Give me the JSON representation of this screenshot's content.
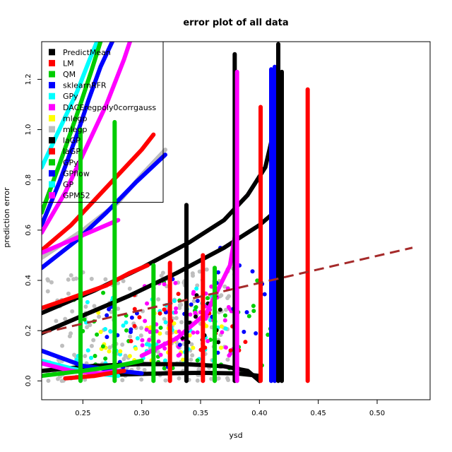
{
  "chart_data": {
    "type": "scatter",
    "title": "error plot of all data",
    "xlabel": "ysd",
    "ylabel": "prediction error",
    "xlim": [
      0.215,
      0.545
    ],
    "ylim": [
      -0.075,
      1.35
    ],
    "x_ticks": [
      0.25,
      0.3,
      0.35,
      0.4,
      0.45,
      0.5
    ],
    "x_tick_labels": [
      "0.25",
      "0.30",
      "0.35",
      "0.40",
      "0.45",
      "0.50"
    ],
    "y_ticks": [
      0.0,
      0.2,
      0.4,
      0.6,
      0.8,
      1.0,
      1.2
    ],
    "y_tick_labels": [
      "0.0",
      "0.2",
      "0.4",
      "0.6",
      "0.8",
      "1.0",
      "1.2"
    ],
    "legend_position": "top-left",
    "legend": [
      {
        "label": "PredictMean",
        "color": "#000000"
      },
      {
        "label": "LM",
        "color": "#ff0000"
      },
      {
        "label": "QM",
        "color": "#00cd00"
      },
      {
        "label": "sklearnRFR",
        "color": "#0000ff"
      },
      {
        "label": "GPy",
        "color": "#00ffff"
      },
      {
        "label": "DACEregpoly0corrgauss",
        "color": "#ff00ff"
      },
      {
        "label": "mlegp",
        "color": "#ffff00"
      },
      {
        "label": "mlegp",
        "color": "#bebebe"
      },
      {
        "label": "laGP",
        "color": "#000000"
      },
      {
        "label": "laGP",
        "color": "#ff0000"
      },
      {
        "label": "GPy",
        "color": "#00cd00"
      },
      {
        "label": "GPflow",
        "color": "#0000ff"
      },
      {
        "label": "GP",
        "color": "#00ffff"
      },
      {
        "label": "GPM52",
        "color": "#ff00ff"
      }
    ],
    "reference_line": {
      "x": [
        0.215,
        0.53
      ],
      "y": [
        0.19,
        0.53
      ],
      "color": "#a52a2a",
      "style": "dashed"
    },
    "vertical_lines": [
      {
        "x": 0.248,
        "y": [
          0.0,
          1.0
        ],
        "color": "#00cd00"
      },
      {
        "x": 0.277,
        "y": [
          0.0,
          1.03
        ],
        "color": "#00cd00"
      },
      {
        "x": 0.31,
        "y": [
          0.0,
          0.46
        ],
        "color": "#00cd00"
      },
      {
        "x": 0.324,
        "y": [
          0.0,
          0.47
        ],
        "color": "#ff0000"
      },
      {
        "x": 0.338,
        "y": [
          0.0,
          0.7
        ],
        "color": "#000000"
      },
      {
        "x": 0.352,
        "y": [
          0.0,
          0.5
        ],
        "color": "#ff0000"
      },
      {
        "x": 0.362,
        "y": [
          0.0,
          0.45
        ],
        "color": "#00cd00"
      },
      {
        "x": 0.379,
        "y": [
          0.0,
          1.3
        ],
        "color": "#000000"
      },
      {
        "x": 0.381,
        "y": [
          0.0,
          1.23
        ],
        "color": "#ff00ff"
      },
      {
        "x": 0.401,
        "y": [
          0.0,
          1.09
        ],
        "color": "#ff0000"
      },
      {
        "x": 0.41,
        "y": [
          0.0,
          1.24
        ],
        "color": "#0000ff"
      },
      {
        "x": 0.413,
        "y": [
          0.0,
          1.25
        ],
        "color": "#0000ff"
      },
      {
        "x": 0.416,
        "y": [
          0.0,
          1.34
        ],
        "color": "#000000"
      },
      {
        "x": 0.419,
        "y": [
          0.0,
          1.23
        ],
        "color": "#000000"
      },
      {
        "x": 0.441,
        "y": [
          0.0,
          1.16
        ],
        "color": "#ff0000"
      }
    ],
    "series": [
      {
        "color": "#000000",
        "x": [
          0.215,
          0.26,
          0.3,
          0.34,
          0.37,
          0.39,
          0.405,
          0.415
        ],
        "y": [
          0.27,
          0.36,
          0.45,
          0.55,
          0.64,
          0.74,
          0.85,
          1.05
        ]
      },
      {
        "color": "#000000",
        "x": [
          0.215,
          0.25,
          0.29,
          0.33,
          0.37,
          0.4,
          0.415
        ],
        "y": [
          0.19,
          0.26,
          0.34,
          0.43,
          0.53,
          0.62,
          0.68
        ]
      },
      {
        "color": "#ff0000",
        "x": [
          0.215,
          0.24,
          0.27,
          0.29,
          0.305
        ],
        "y": [
          0.29,
          0.33,
          0.38,
          0.43,
          0.46
        ]
      },
      {
        "color": "#ff0000",
        "x": [
          0.215,
          0.24,
          0.26,
          0.28,
          0.3,
          0.31
        ],
        "y": [
          0.52,
          0.62,
          0.72,
          0.82,
          0.92,
          0.98
        ]
      },
      {
        "color": "#bebebe",
        "x": [
          0.215,
          0.25,
          0.28,
          0.3,
          0.32
        ],
        "y": [
          0.49,
          0.6,
          0.71,
          0.82,
          0.92
        ]
      },
      {
        "color": "#0000ff",
        "x": [
          0.215,
          0.245,
          0.27,
          0.295,
          0.32
        ],
        "y": [
          0.45,
          0.56,
          0.67,
          0.79,
          0.9
        ]
      },
      {
        "color": "#0000ff",
        "x": [
          0.215,
          0.23,
          0.245,
          0.255,
          0.265,
          0.275
        ],
        "y": [
          0.62,
          0.79,
          0.98,
          1.12,
          1.25,
          1.35
        ]
      },
      {
        "color": "#ff00ff",
        "x": [
          0.215,
          0.235,
          0.255,
          0.27,
          0.285,
          0.29
        ],
        "y": [
          0.59,
          0.75,
          0.95,
          1.1,
          1.28,
          1.35
        ]
      },
      {
        "color": "#00ffff",
        "x": [
          0.215,
          0.23,
          0.245,
          0.255,
          0.262
        ],
        "y": [
          0.85,
          1.0,
          1.15,
          1.27,
          1.35
        ]
      },
      {
        "color": "#00cd00",
        "x": [
          0.215,
          0.23,
          0.245,
          0.257,
          0.265
        ],
        "y": [
          0.67,
          0.86,
          1.06,
          1.23,
          1.35
        ]
      },
      {
        "color": "#ff00ff",
        "x": [
          0.215,
          0.24,
          0.26,
          0.28
        ],
        "y": [
          0.51,
          0.56,
          0.6,
          0.64
        ]
      },
      {
        "color": "#ff00ff",
        "x": [
          0.3,
          0.33,
          0.355,
          0.375,
          0.38
        ],
        "y": [
          0.1,
          0.17,
          0.27,
          0.46,
          0.6
        ]
      },
      {
        "color": "#000000",
        "x": [
          0.215,
          0.26,
          0.3,
          0.34,
          0.37,
          0.39,
          0.4
        ],
        "y": [
          0.04,
          0.06,
          0.067,
          0.066,
          0.058,
          0.04,
          0.0
        ]
      },
      {
        "color": "#000000",
        "x": [
          0.28,
          0.32,
          0.35,
          0.38,
          0.4
        ],
        "y": [
          0.025,
          0.03,
          0.032,
          0.03,
          0.02
        ]
      },
      {
        "color": "#00ffff",
        "x": [
          0.215,
          0.24,
          0.26,
          0.28
        ],
        "y": [
          0.08,
          0.05,
          0.03,
          0.02
        ]
      },
      {
        "color": "#0000ff",
        "x": [
          0.215,
          0.25,
          0.28,
          0.3
        ],
        "y": [
          0.12,
          0.06,
          0.04,
          0.03
        ]
      },
      {
        "color": "#ff00ff",
        "x": [
          0.215,
          0.24,
          0.265,
          0.28
        ],
        "y": [
          0.07,
          0.04,
          0.03,
          0.04
        ]
      },
      {
        "color": "#ff0000",
        "x": [
          0.235,
          0.26,
          0.285
        ],
        "y": [
          0.01,
          0.02,
          0.04
        ]
      },
      {
        "color": "#00cd00",
        "x": [
          0.215,
          0.25,
          0.28,
          0.3
        ],
        "y": [
          0.02,
          0.04,
          0.06,
          0.08
        ]
      }
    ],
    "point_clouds": [
      {
        "color": "#bebebe",
        "xlim": [
          0.22,
          0.38
        ],
        "ylim": [
          0.0,
          0.45
        ],
        "n": 220
      },
      {
        "color": "#00ffff",
        "xlim": [
          0.24,
          0.38
        ],
        "ylim": [
          0.05,
          0.38
        ],
        "n": 60
      },
      {
        "color": "#ffff00",
        "xlim": [
          0.26,
          0.37
        ],
        "ylim": [
          0.08,
          0.32
        ],
        "n": 35
      },
      {
        "color": "#00cd00",
        "xlim": [
          0.24,
          0.41
        ],
        "ylim": [
          0.05,
          0.4
        ],
        "n": 40
      },
      {
        "color": "#ff00ff",
        "xlim": [
          0.3,
          0.38
        ],
        "ylim": [
          0.1,
          0.4
        ],
        "n": 60
      },
      {
        "color": "#0000ff",
        "xlim": [
          0.27,
          0.41
        ],
        "ylim": [
          0.05,
          0.55
        ],
        "n": 35
      },
      {
        "color": "#ff0000",
        "xlim": [
          0.29,
          0.39
        ],
        "ylim": [
          0.12,
          0.4
        ],
        "n": 20
      },
      {
        "color": "#000000",
        "xlim": [
          0.33,
          0.37
        ],
        "ylim": [
          0.15,
          0.35
        ],
        "n": 12
      }
    ]
  }
}
